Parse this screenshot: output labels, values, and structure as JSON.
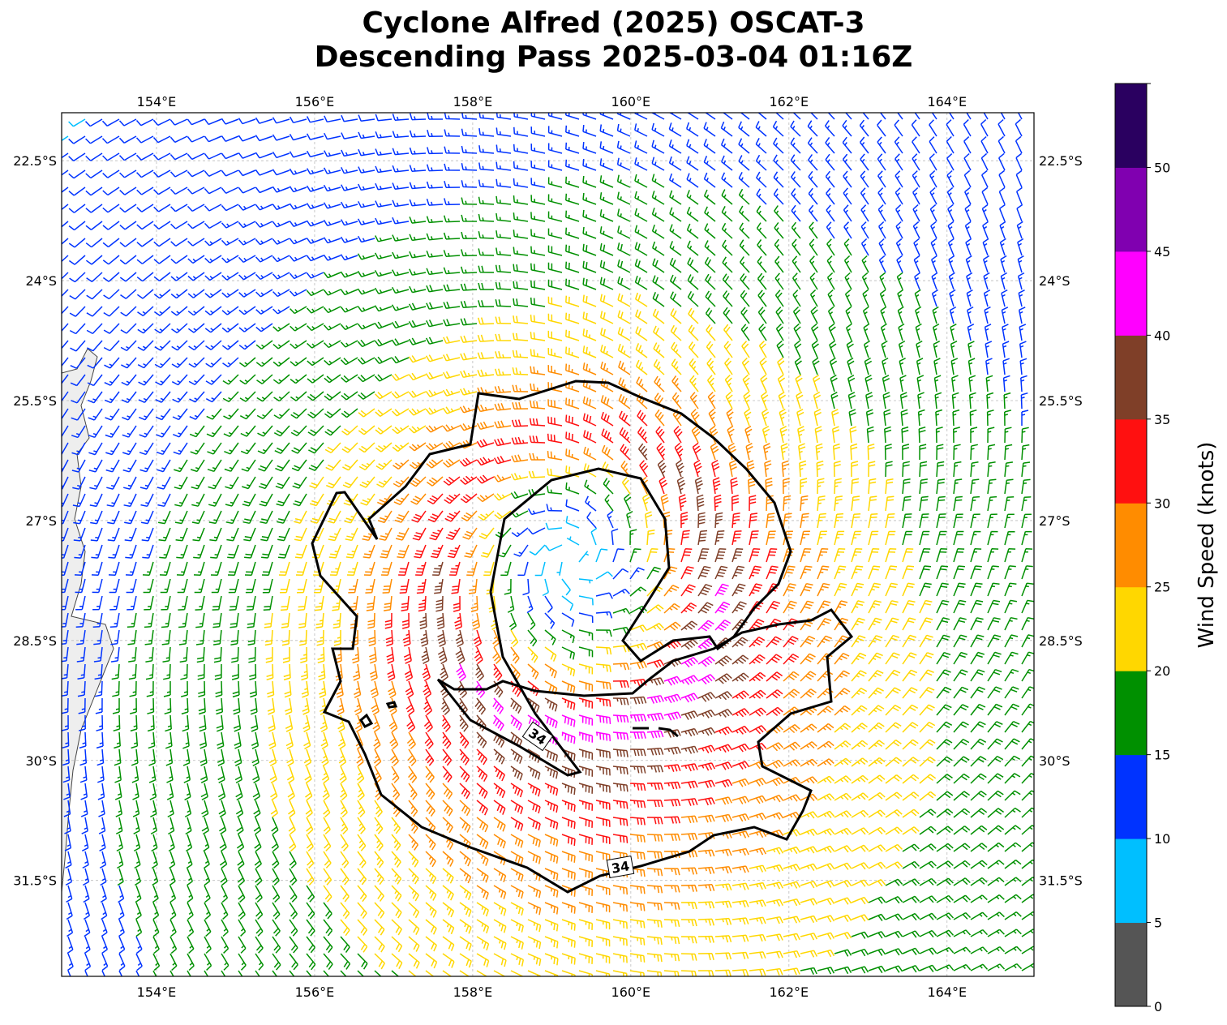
{
  "title": {
    "line1": "Cyclone Alfred (2025) OSCAT-3",
    "line2": "Descending Pass 2025-03-04 01:16Z"
  },
  "map": {
    "lon_range": [
      152.8,
      165.1
    ],
    "lat_range": [
      -32.7,
      -21.9
    ],
    "lon_ticks": [
      {
        "value": 154,
        "label": "154°E"
      },
      {
        "value": 156,
        "label": "156°E"
      },
      {
        "value": 158,
        "label": "158°E"
      },
      {
        "value": 160,
        "label": "160°E"
      },
      {
        "value": 162,
        "label": "162°E"
      },
      {
        "value": 164,
        "label": "164°E"
      }
    ],
    "lat_ticks": [
      {
        "value": -22.5,
        "label": "22.5°S"
      },
      {
        "value": -24,
        "label": "24°S"
      },
      {
        "value": -25.5,
        "label": "25.5°S"
      },
      {
        "value": -27,
        "label": "27°S"
      },
      {
        "value": -28.5,
        "label": "28.5°S"
      },
      {
        "value": -30,
        "label": "30°S"
      },
      {
        "value": -31.5,
        "label": "31.5°S"
      }
    ],
    "cyclone_center": {
      "lon": 159.3,
      "lat": -27.5
    },
    "contour_labels": [
      "34",
      "34"
    ]
  },
  "colorbar": {
    "label": "Wind Speed (knots)",
    "bounds": [
      0,
      5,
      10,
      15,
      20,
      25,
      30,
      35,
      40,
      45,
      50,
      55
    ],
    "tick_labels": [
      "0",
      "5",
      "10",
      "15",
      "20",
      "25",
      "30",
      "35",
      "40",
      "45",
      "50"
    ],
    "colors": [
      "#555555",
      "#00bfff",
      "#0033ff",
      "#009000",
      "#ffd700",
      "#ff8c00",
      "#ff1010",
      "#7f3f28",
      "#ff00ff",
      "#8000b0",
      "#2a0060"
    ]
  }
}
